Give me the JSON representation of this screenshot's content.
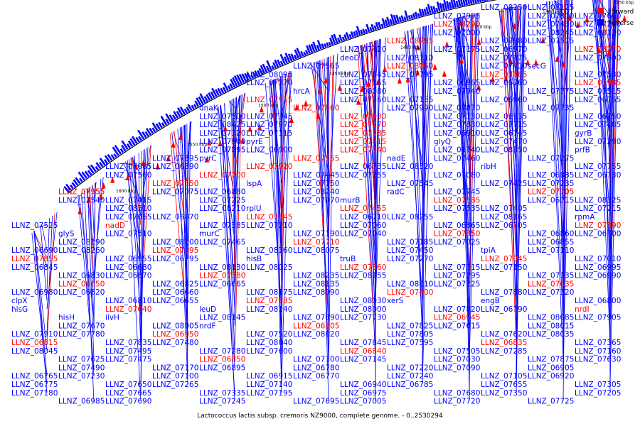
{
  "title": "Lactococcus lactis subsp. cremoris NZ9000, complete genome. - 0..2530294",
  "legend": [
    {
      "label": "Forward",
      "color": "#ff0000"
    },
    {
      "label": "Reverse",
      "color": "#0000ff"
    }
  ],
  "colors": {
    "forward": "#ff0000",
    "reverse": "#0000ff",
    "ring": "#000000"
  },
  "scale_ticks": [
    "1250 kbp",
    "1300 kbp",
    "1350 kbp",
    "1400 kbp",
    "1450 kbp",
    "1500 kbp",
    "1550 kbp",
    "1600 kbp"
  ],
  "labels_reverse": [
    "LLNZ_08250",
    "LLNZ_08125",
    "LLNZ_07995",
    "LLNZ_07810",
    "LLNZ_07660",
    "LLNZ_07430",
    "LLNZ_07200",
    "LLNZ_07000",
    "LLNZ_08245",
    "LLNZ_08120",
    "LLNZ_07980",
    "LLNZ_07575",
    "LLNZ_07420",
    "LLNZ_07175",
    "LLNZ_06970",
    "deoD",
    "LLNZ_08110",
    "LLNZ_07975",
    "LLNZ_07800",
    "LLNZ_07565",
    "LLNZ_07410",
    "secG",
    "LLNZ_08095",
    "LLNZ_07945",
    "LLNZ_07795",
    "LLNZ_07530",
    "LLNZ_07370",
    "LLNZ_07165",
    "LLNZ_06965",
    "LLNZ_06760",
    "hrcA",
    "LLNZ_08080",
    "LLNZ_07940",
    "LLNZ_07775",
    "LLNZ_07515",
    "LLNZ_07360",
    "LLNZ_07155",
    "LLNZ_06960",
    "LLNZ_06755",
    "dnaK",
    "LLNZ_07990",
    "LLNZ_07870",
    "LLNZ_07735",
    "LLNZ_07500",
    "LLNZ_07345",
    "LLNZ_07130",
    "LLNZ_06935",
    "LLNZ_06750",
    "LLNZ_08425",
    "LLNZ_07970",
    "LLNZ_07830",
    "LLNZ_07715",
    "LLNZ_07485",
    "LLNZ_07320",
    "LLNZ_07115",
    "LLNZ_06910",
    "LLNZ_06745",
    "gyrB",
    "LLNZ_07900",
    "pyrE",
    "glyQ",
    "LLNZ_07470",
    "LLNZ_07290",
    "LLNZ_07095",
    "LLNZ_06900",
    "LLNZ_06740",
    "LLNZ_08350",
    "prfB",
    "LLNZ_07895",
    "pyrC",
    "nadE",
    "LLNZ_07460",
    "LLNZ_07275",
    "LLNZ_07085",
    "LLNZ_06890",
    "LLNZ_06735",
    "LLNZ_08320",
    "ribH",
    "LLNZ_07755",
    "LLNZ_07560",
    "LLNZ_07445",
    "LLNZ_07255",
    "LLNZ_07080",
    "LLNZ_06885",
    "LLNZ_06730",
    "lspA",
    "LLNZ_07750",
    "LLNZ_07545",
    "LLNZ_07425",
    "LLNZ_07235",
    "LLNZ_07075",
    "LLNZ_06880",
    "LLNZ_08240",
    "radC",
    "LLNZ_07745",
    "LLNZ_07540",
    "LLNZ_07415",
    "LLNZ_07225",
    "LLNZ_07070",
    "murB",
    "LLNZ_06715",
    "LLNZ_08325",
    "LLNZ_08310",
    "LLNZ_08210",
    "rplU",
    "LLNZ_07535",
    "LLNZ_07405",
    "LLNZ_07215",
    "LLNZ_07065",
    "LLNZ_06870",
    "LLNZ_06710",
    "LLNZ_08255",
    "LLNZ_08165",
    "rpmA",
    "LLNZ_07525",
    "LLNZ_07385",
    "LLNZ_07210",
    "LLNZ_07060",
    "LLNZ_06865",
    "LLNZ_06705",
    "glyS",
    "LLNZ_07510",
    "murC",
    "LLNZ_07190",
    "LLNZ_07040",
    "LLNZ_06860",
    "LLNZ_06700",
    "LLNZ_08190",
    "LLNZ_08100",
    "LLNZ_07465",
    "LLNZ_07185",
    "LLNZ_07025",
    "LLNZ_06855",
    "LLNZ_06690",
    "LLNZ_08260",
    "LLNZ_08160",
    "LLNZ_08075",
    "LLNZ_07450",
    "tpiA",
    "LLNZ_07110",
    "LLNZ_06955",
    "LLNZ_06795",
    "hisB",
    "truB",
    "LLNZ_07270",
    "LLNZ_07010",
    "LLNZ_06845",
    "LLNZ_06680",
    "LLNZ_08130",
    "LLNZ_08025",
    "LLNZ_07315",
    "LLNZ_07150",
    "LLNZ_06995",
    "LLNZ_06830",
    "LLNZ_06670",
    "LLNZ_08235",
    "LLNZ_08155",
    "LLNZ_07295",
    "LLNZ_07135",
    "LLNZ_06990",
    "LLNZ_06825",
    "LLNZ_06665",
    "LLNZ_08135",
    "LLNZ_08010",
    "LLNZ_07125",
    "LLNZ_06980",
    "LLNZ_06820",
    "LLNZ_06660",
    "LLNZ_08175",
    "LLNZ_08090",
    "LLNZ_07880",
    "LLNZ_07120",
    "clpX",
    "LLNZ_06810",
    "LLNZ_06655",
    "LLNZ_08030",
    "xerS",
    "engB",
    "LLNZ_06800",
    "hisG",
    "leuD",
    "LLNZ_08140",
    "LLNZ_08000",
    "LLNZ_07820",
    "LLNZ_06790",
    "hisH",
    "ilvH",
    "LLNZ_08145",
    "LLNZ_07890",
    "LLNZ_07730",
    "LLNZ_08085",
    "LLNZ_07905",
    "LLNZ_07670",
    "LLNZ_08005",
    "nrdF",
    "LLNZ_07825",
    "LLNZ_07615",
    "LLNZ_08015",
    "LLNZ_07910",
    "LLNZ_07780",
    "LLNZ_07520",
    "LLNZ_08020",
    "LLNZ_07805",
    "LLNZ_07620",
    "LLNZ_08035",
    "LLNZ_07835",
    "LLNZ_07480",
    "LLNZ_08040",
    "LLNZ_07845",
    "LLNZ_07595",
    "LLNZ_07365",
    "LLNZ_08045",
    "LLNZ_07495",
    "LLNZ_07280",
    "LLNZ_07600",
    "LLNZ_07505",
    "LLNZ_07285",
    "LLNZ_07160",
    "LLNZ_07625",
    "LLNZ_07475",
    "LLNZ_07300",
    "LLNZ_07145",
    "LLNZ_07030",
    "LLNZ_07875",
    "LLNZ_07630",
    "LLNZ_07490",
    "LLNZ_07170",
    "LLNZ_06895",
    "LLNZ_06780",
    "LLNZ_07220",
    "LLNZ_07090",
    "LLNZ_06905",
    "LLNZ_06765",
    "LLNZ_07230",
    "LLNZ_07100",
    "LLNZ_06915",
    "LLNZ_06770",
    "LLNZ_07240",
    "LLNZ_07105",
    "LLNZ_06920",
    "LLNZ_06775",
    "LLNZ_07650",
    "LLNZ_07265",
    "LLNZ_07140",
    "LLNZ_06940",
    "LLNZ_06785",
    "LLNZ_07655",
    "LLNZ_07305",
    "LLNZ_07180",
    "LLNZ_07665",
    "LLNZ_07335",
    "LLNZ_07195",
    "LLNZ_06975",
    "LLNZ_07680",
    "LLNZ_07350",
    "LLNZ_07205",
    "LLNZ_06985",
    "LLNZ_07690",
    "LLNZ_07245",
    "LLNZ_07695",
    "LLNZ_07005",
    "LLNZ_07720",
    "LLNZ_07725"
  ],
  "labels_forward": [
    "LLNZ_08290",
    "LLNZ_08295",
    "LLNZ_08220",
    "LLNZ_08060",
    "LLNZ_07965",
    "LLNZ_07985",
    "LLNZ_07915",
    "LLNZ_07960",
    "LLNZ_07930",
    "LLNZ_07770",
    "LLNZ_07785",
    "LLNZ_07815",
    "LLNZ_07740",
    "LLNZ_07555",
    "LLNZ_07920",
    "LLNZ_07700",
    "LLNZ_07550",
    "LLNZ_07955",
    "LLNZ_07705",
    "LLNZ_07585",
    "LLNZ_07455",
    "LLNZ_07645",
    "nadD",
    "LLNZ_07390",
    "LLNZ_07850",
    "LLNZ_07710",
    "LLNZ_07395",
    "LLNZ_07855",
    "LLNZ_07045",
    "LLNZ_07860",
    "LLNZ_07380",
    "LLNZ_06650",
    "LLNZ_07635",
    "LLNZ_07400",
    "LLNZ_07885",
    "LLNZ_07640",
    "nrdI",
    "LLNZ_06945",
    "LLNZ_06805",
    "LLNZ_06950",
    "LLNZ_06815",
    "LLNZ_06835",
    "LLNZ_06840",
    "LLNZ_06850"
  ]
}
